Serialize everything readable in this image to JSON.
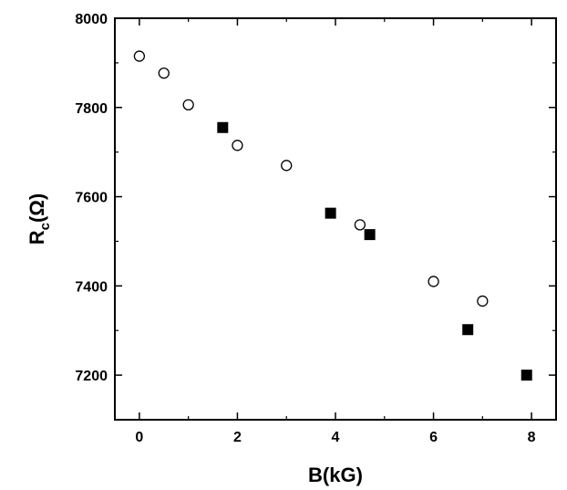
{
  "chart_data": {
    "type": "scatter",
    "xlabel": "B(kG)",
    "ylabel_main": "R",
    "ylabel_sub": "c",
    "ylabel_unit": "(Ω)",
    "xlim": [
      -0.5,
      8.5
    ],
    "ylim": [
      7100,
      8000
    ],
    "xticks": [
      0,
      2,
      4,
      6,
      8
    ],
    "yticks": [
      7200,
      7400,
      7600,
      7800,
      8000
    ],
    "grid": false,
    "series": [
      {
        "marker": "open-circle",
        "x": [
          0,
          0.5,
          1.0,
          2.0,
          3.0,
          4.5,
          6.0,
          7.0
        ],
        "y": [
          7915,
          7877,
          7806,
          7715,
          7670,
          7537,
          7410,
          7366
        ]
      },
      {
        "marker": "filled-square",
        "x": [
          1.7,
          3.9,
          4.7,
          6.7,
          7.9
        ],
        "y": [
          7755,
          7563,
          7515,
          7302,
          7200
        ]
      }
    ]
  }
}
